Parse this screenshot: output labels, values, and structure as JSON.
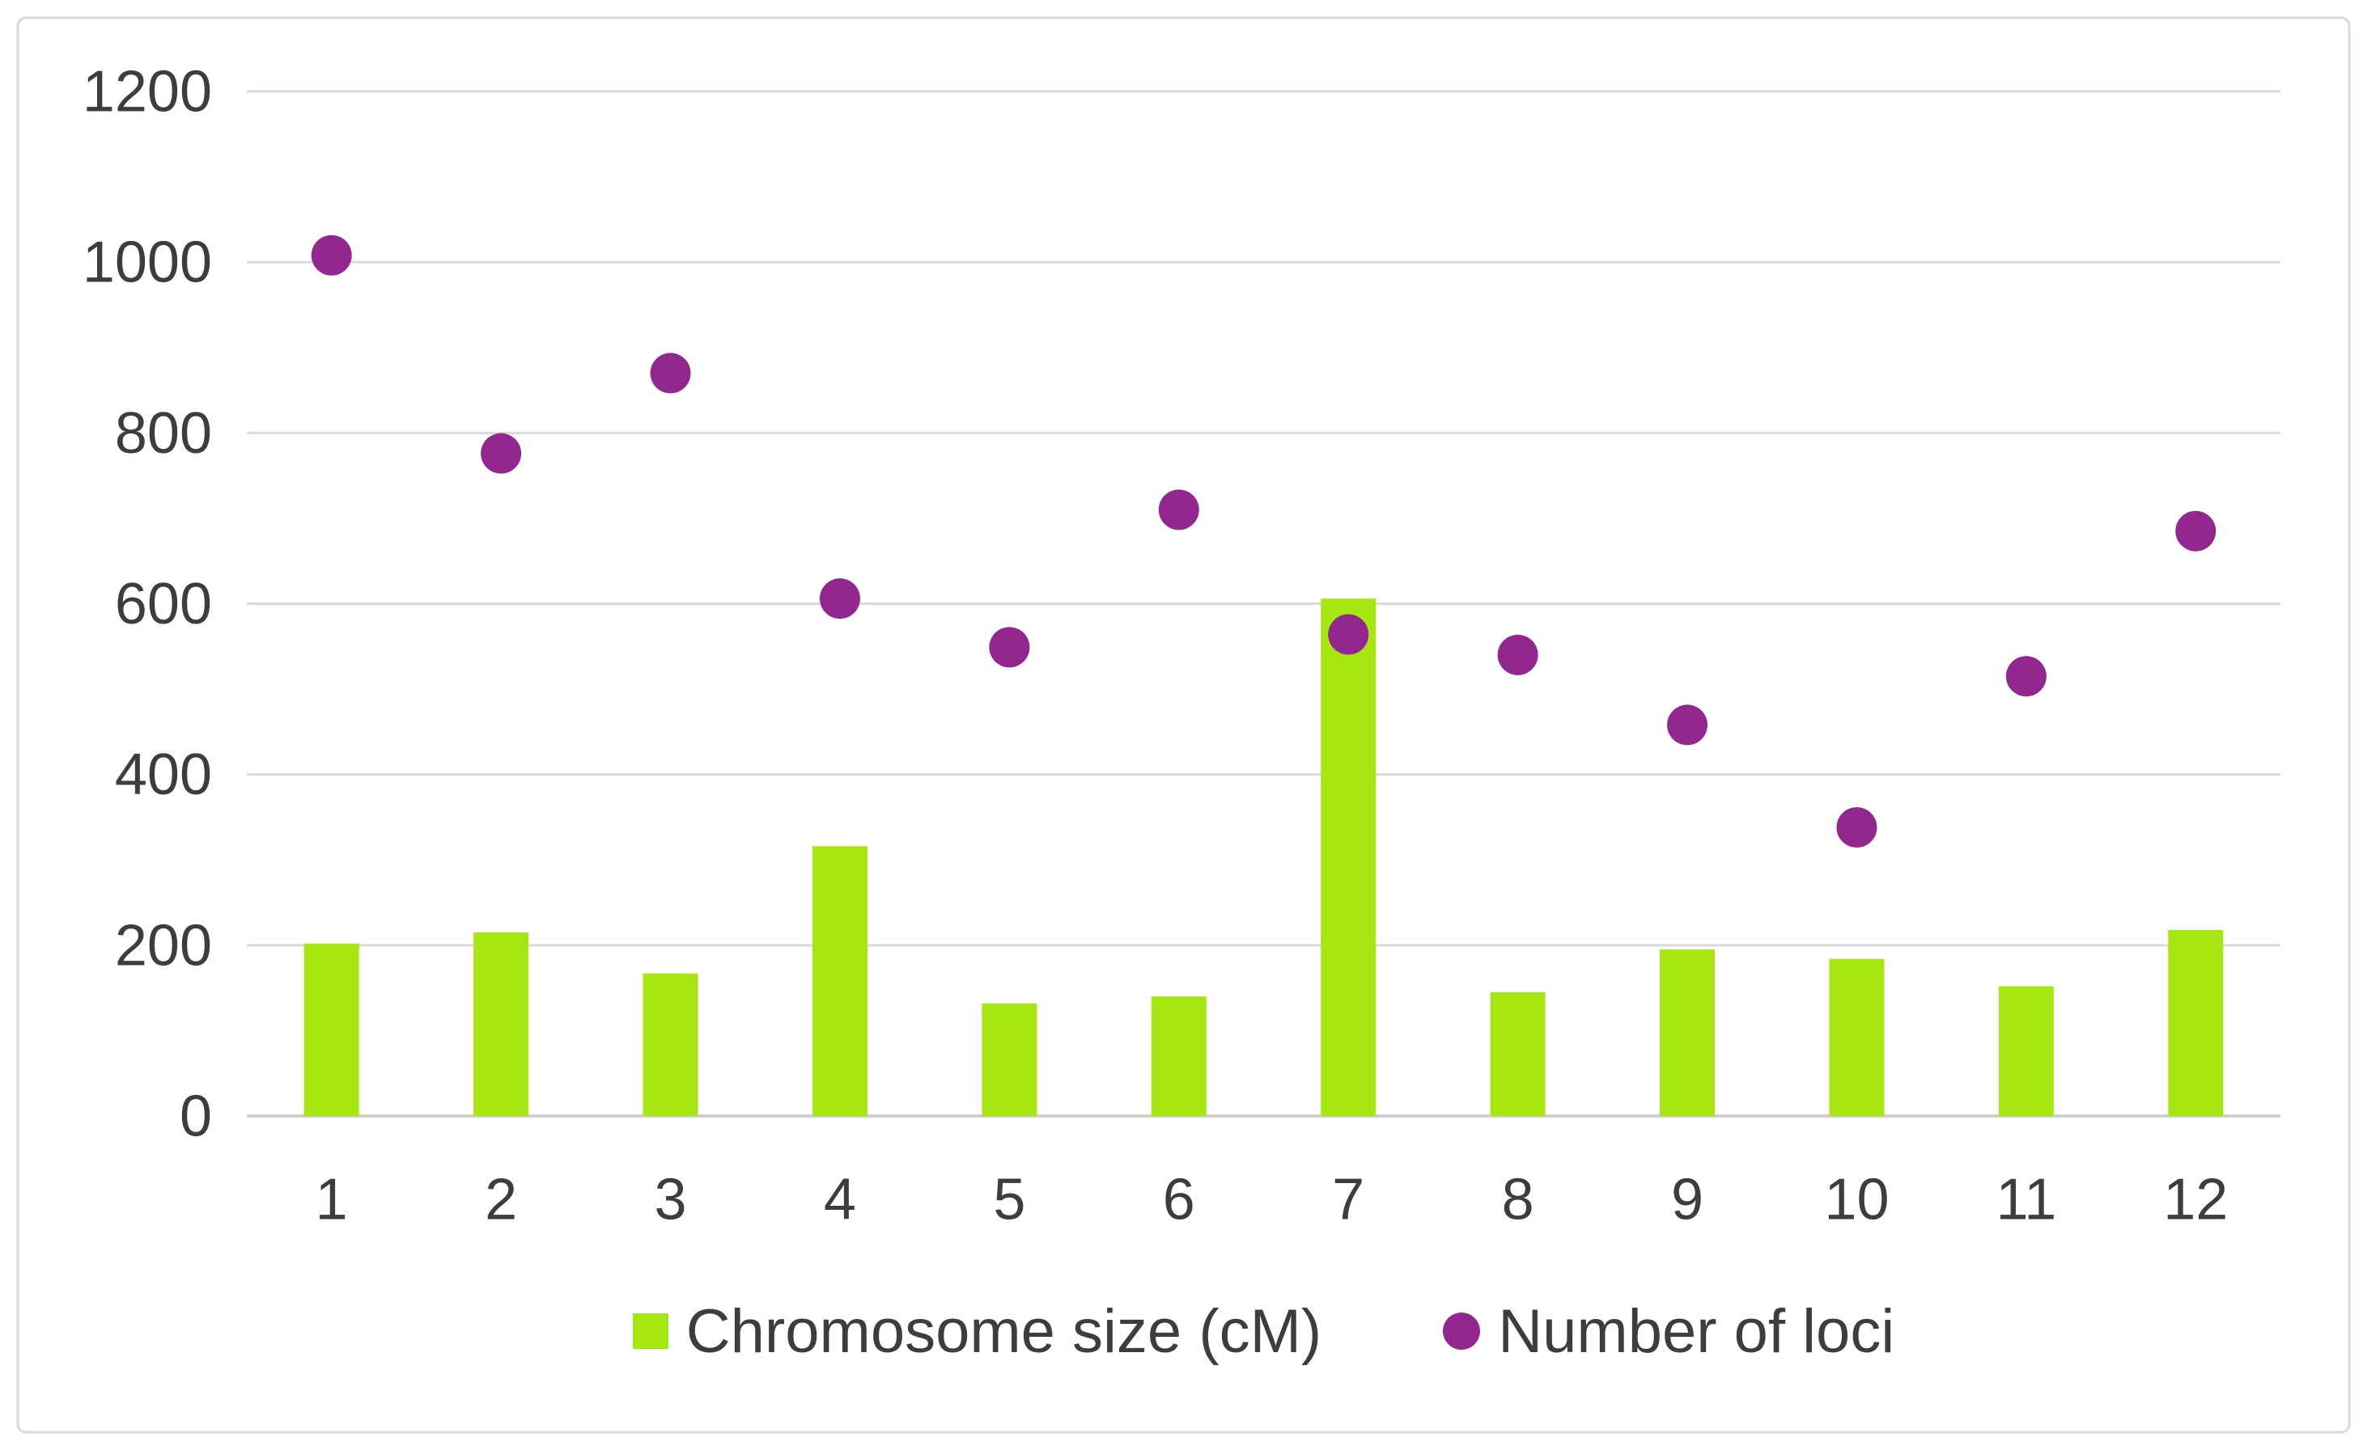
{
  "chart": {
    "background_color": "#ffffff",
    "border_color": "#d9d9d9",
    "gridline_color": "#dadada",
    "axis_line_color": "#cfcfcf",
    "tick_label_color": "#3d3d3d",
    "legend_text_color": "#3d3d3d"
  },
  "chart_data": {
    "type": "bar",
    "subtype": "combo-bar-scatter",
    "title": "",
    "xlabel": "",
    "ylabel": "",
    "categories": [
      "1",
      "2",
      "3",
      "4",
      "5",
      "6",
      "7",
      "8",
      "9",
      "10",
      "11",
      "12"
    ],
    "series": [
      {
        "name": "Chromosome size (cM)",
        "type": "bar",
        "color": "#a6e712",
        "values": [
          202,
          215,
          167,
          316,
          132,
          140,
          606,
          145,
          195,
          184,
          152,
          218
        ]
      },
      {
        "name": "Number of loci",
        "type": "scatter",
        "color": "#92278f",
        "values": [
          1008,
          776,
          870,
          606,
          549,
          710,
          564,
          540,
          458,
          338,
          515,
          685
        ]
      }
    ],
    "ylim": [
      0,
      1200
    ],
    "ytick_values": [
      0,
      200,
      400,
      600,
      800,
      1000,
      1200
    ],
    "y_tick_labels": [
      "0",
      "200",
      "400",
      "600",
      "800",
      "1000",
      "1200"
    ],
    "x_tick_labels": [
      "1",
      "2",
      "3",
      "4",
      "5",
      "6",
      "7",
      "8",
      "9",
      "10",
      "11",
      "12"
    ],
    "grid": true,
    "legend_position": "bottom"
  }
}
